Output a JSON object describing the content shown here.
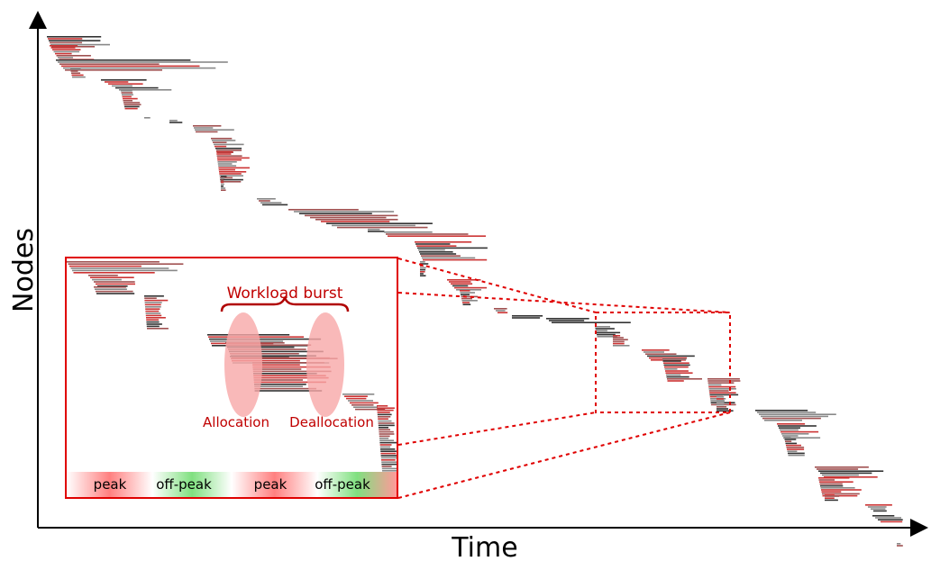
{
  "axes": {
    "x_label": "Time",
    "y_label": "Nodes"
  },
  "annotations": {
    "workload_burst": "Workload burst",
    "allocation": "Allocation",
    "deallocation": "Deallocation",
    "timeline": [
      "peak",
      "off-peak",
      "peak",
      "off-peak"
    ]
  },
  "colors": {
    "axis": "#000000",
    "highlight": "#e00000",
    "annotation_text": "#c00000",
    "bar_red": "#cc3333",
    "bar_gray": "#888888",
    "bar_dark": "#333333",
    "peak": "#ff6666",
    "off_peak": "#66dd66",
    "ellipse_fill": "#f7a8a8"
  }
}
